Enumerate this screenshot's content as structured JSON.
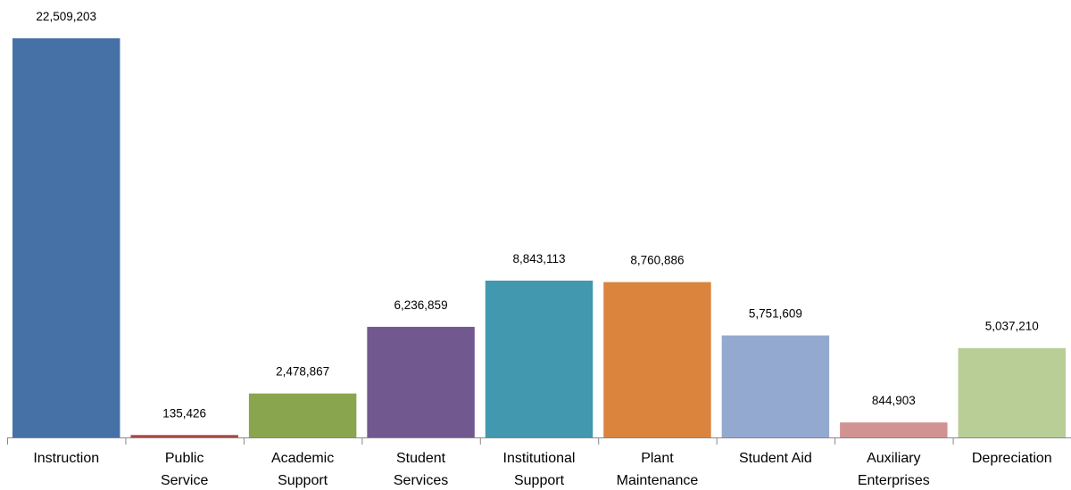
{
  "chart_data": {
    "type": "bar",
    "categories": [
      [
        "Instruction"
      ],
      [
        "Public",
        "Service"
      ],
      [
        "Academic",
        "Support"
      ],
      [
        "Student",
        "Services"
      ],
      [
        "Institutional",
        "Support"
      ],
      [
        "Plant",
        "Maintenance"
      ],
      [
        "Student Aid"
      ],
      [
        "Auxiliary",
        "Enterprises"
      ],
      [
        "Depreciation"
      ]
    ],
    "values": [
      22509203,
      135426,
      2478867,
      6236859,
      8843113,
      8760886,
      5751609,
      844903,
      5037210
    ],
    "value_labels": [
      "22,509,203",
      "135,426",
      "2,478,867",
      "6,236,859",
      "8,843,113",
      "8,760,886",
      "5,751,609",
      "844,903",
      "5,037,210"
    ],
    "colors": [
      "#4571a7",
      "#aa4643",
      "#89a54e",
      "#71588f",
      "#4198af",
      "#db843d",
      "#93a9cf",
      "#d19392",
      "#b9cd96"
    ],
    "ylim": [
      0,
      22509203
    ],
    "grid": false,
    "legend": "none"
  }
}
